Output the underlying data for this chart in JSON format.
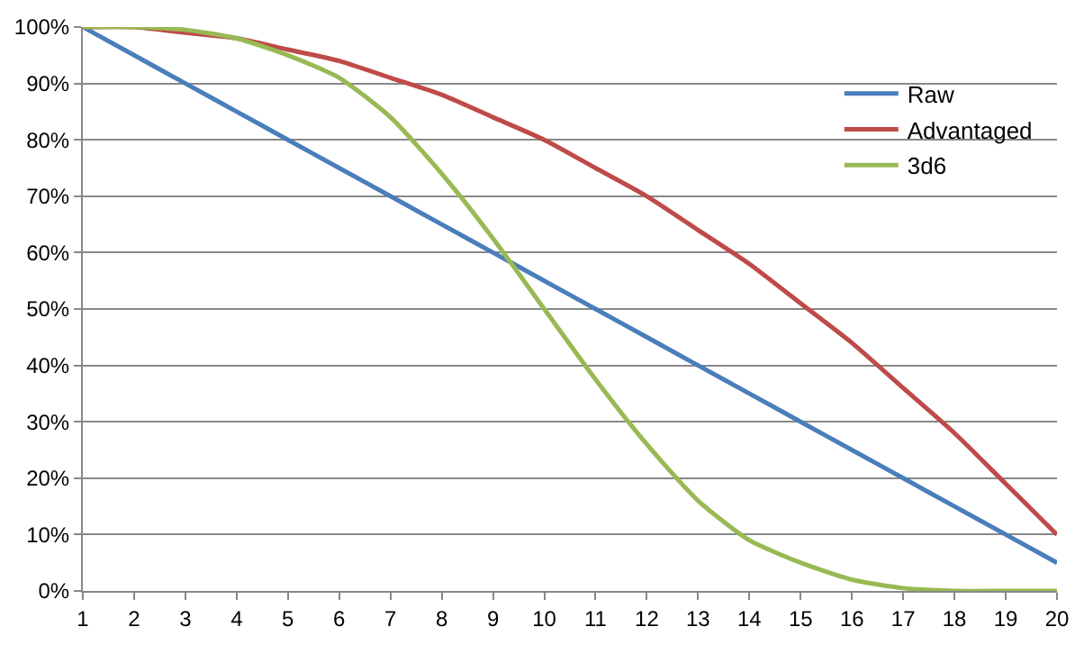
{
  "chart_data": {
    "type": "line",
    "x": [
      1,
      2,
      3,
      4,
      5,
      6,
      7,
      8,
      9,
      10,
      11,
      12,
      13,
      14,
      15,
      16,
      17,
      18,
      19,
      20
    ],
    "series": [
      {
        "name": "Raw",
        "color": "#4a7ebb",
        "values": [
          100,
          95,
          90,
          85,
          80,
          75,
          70,
          65,
          60,
          55,
          50,
          45,
          40,
          35,
          30,
          25,
          20,
          15,
          10,
          5
        ]
      },
      {
        "name": "Advantaged",
        "color": "#be4b48",
        "values": [
          100,
          100,
          99,
          98,
          96,
          94,
          91,
          88,
          84,
          80,
          75,
          70,
          64,
          58,
          51,
          44,
          36,
          28,
          19,
          10
        ]
      },
      {
        "name": "3d6",
        "color": "#98b954",
        "values": [
          100,
          100,
          99.5,
          98,
          95,
          91,
          84,
          74,
          62.5,
          50,
          37.5,
          26,
          16,
          9,
          5,
          2,
          0.5,
          0,
          0,
          0
        ]
      }
    ],
    "xlim": [
      1,
      20
    ],
    "xticks": [
      1,
      2,
      3,
      4,
      5,
      6,
      7,
      8,
      9,
      10,
      11,
      12,
      13,
      14,
      15,
      16,
      17,
      18,
      19,
      20
    ],
    "ylim": [
      0,
      100
    ],
    "yticks": [
      {
        "value": 0,
        "label": "0%"
      },
      {
        "value": 10,
        "label": "10%"
      },
      {
        "value": 20,
        "label": "20%"
      },
      {
        "value": 30,
        "label": "30%"
      },
      {
        "value": 40,
        "label": "40%"
      },
      {
        "value": 50,
        "label": "50%"
      },
      {
        "value": 60,
        "label": "60%"
      },
      {
        "value": 70,
        "label": "70%"
      },
      {
        "value": 80,
        "label": "80%"
      },
      {
        "value": 90,
        "label": "90%"
      },
      {
        "value": 100,
        "label": "100%"
      }
    ],
    "grid": "y",
    "legend": "top right",
    "marker": "none",
    "line_style": "solid"
  }
}
